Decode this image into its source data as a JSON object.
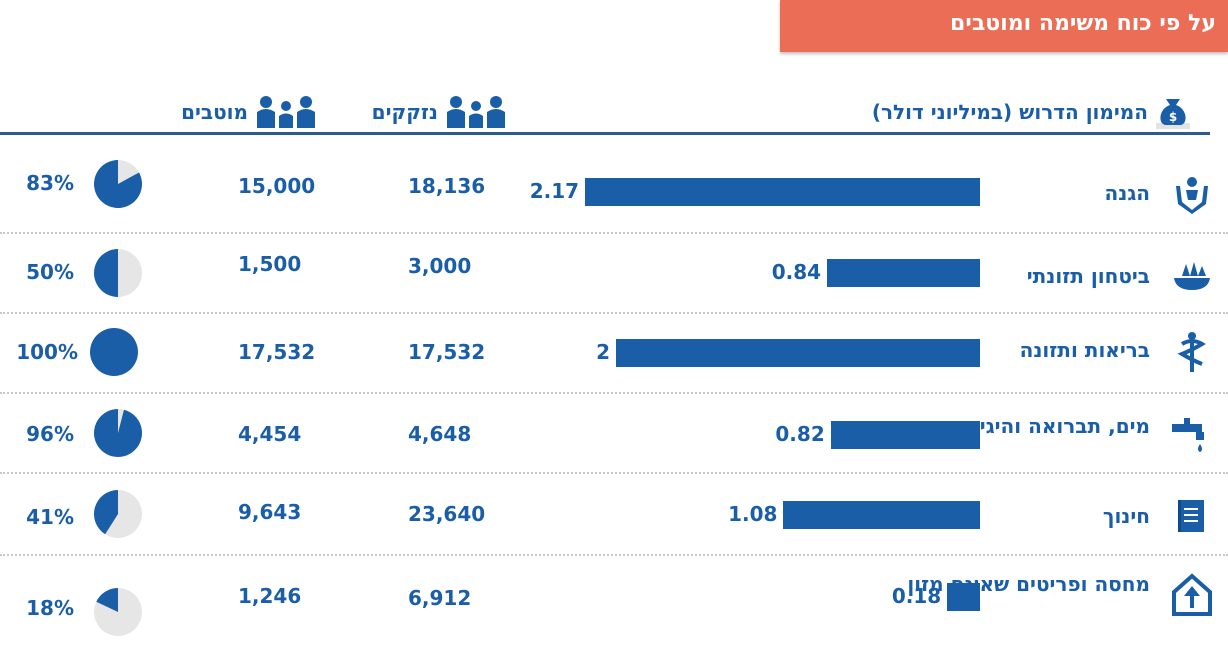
{
  "banner": {
    "title": "על פי כוח משימה ומוטבים"
  },
  "headers": {
    "funding": "המימון הדרוש (במיליוני דולר)",
    "in_need": "נזקקים",
    "beneficiaries": "מוטבים"
  },
  "colors": {
    "accent": "#1a5ea8",
    "banner": "#ec6d55",
    "pie_bg": "#e6e6e6"
  },
  "chart_data": {
    "type": "bar",
    "categories": [
      "הגנה",
      "ביטחון תזונתי",
      "בריאות ותזונה",
      "מים, תברואה והיגיינה",
      "חינוך",
      "מחסה ופריטים שאינם מזון"
    ],
    "values": [
      2.17,
      0.84,
      2,
      0.82,
      1.08,
      0.18
    ],
    "value_labels": [
      "2.17",
      "0.84",
      "2",
      "0.82",
      "1.08",
      "0.18"
    ],
    "in_need": [
      "18,136",
      "3,000",
      "17,532",
      "4,648",
      "23,640",
      "6,912"
    ],
    "beneficiaries": [
      "15,000",
      "1,500",
      "17,532",
      "4,454",
      "9,643",
      "1,246"
    ],
    "coverage_pct": [
      83,
      50,
      100,
      96,
      41,
      18
    ],
    "coverage_labels": [
      "83%",
      "50%",
      "100%",
      "96%",
      "41%",
      "18%"
    ],
    "category_icons": [
      "hands-protection-icon",
      "food-bowl-icon",
      "caduceus-icon",
      "water-tap-icon",
      "book-icon",
      "shelter-icon"
    ]
  }
}
